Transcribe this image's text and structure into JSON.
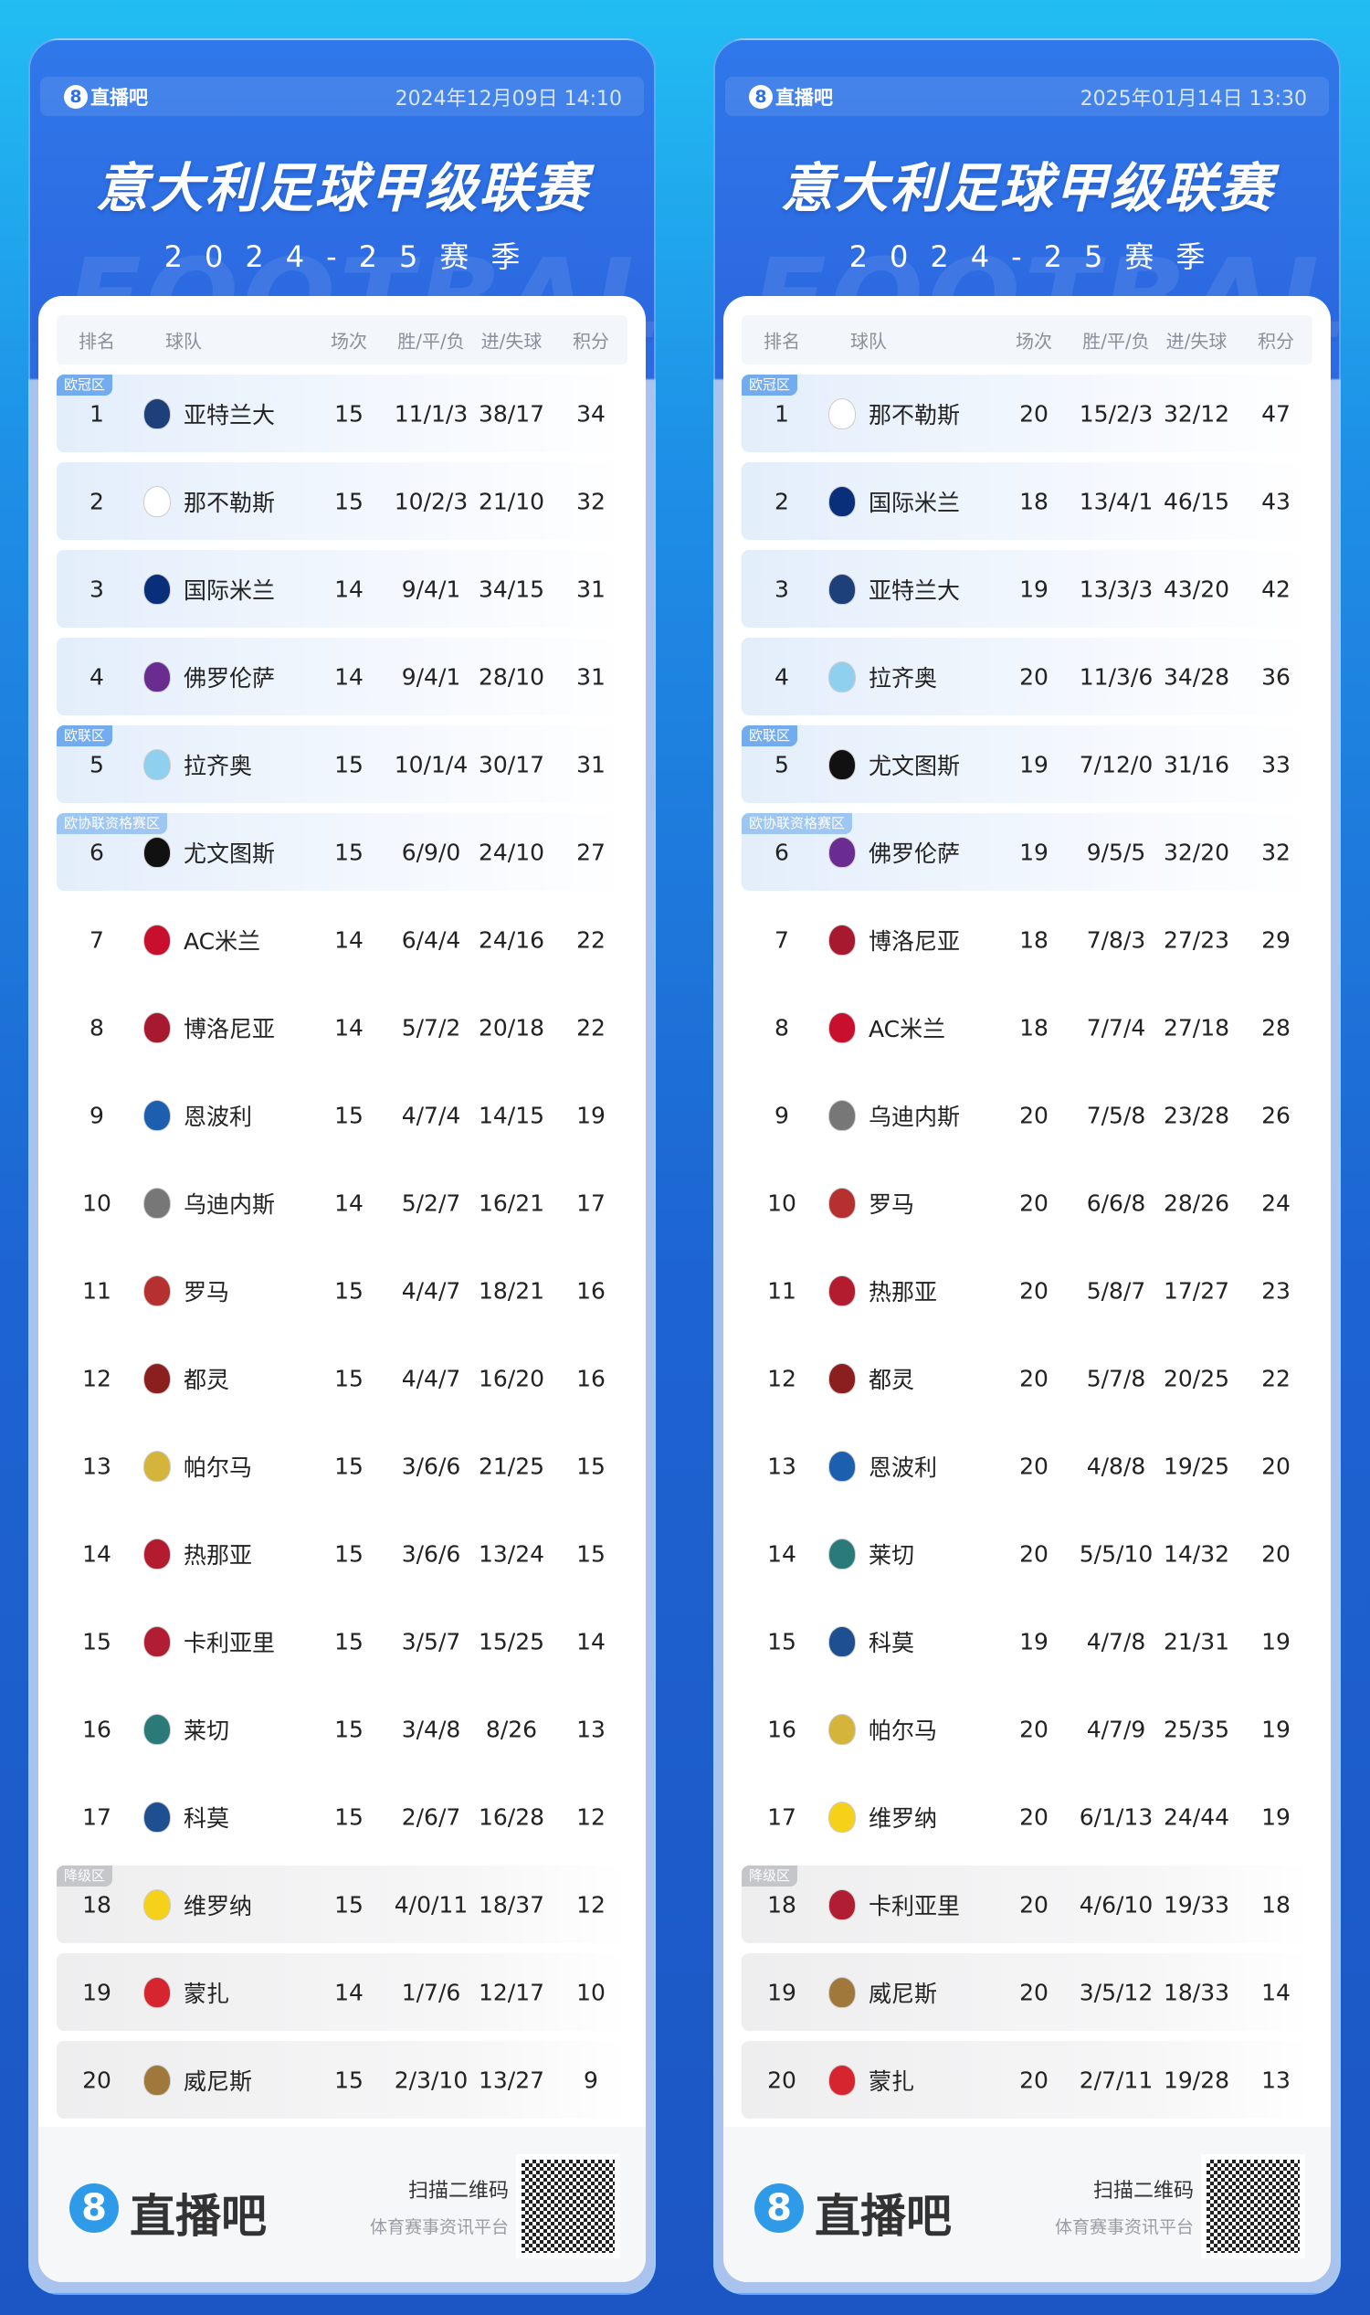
{
  "colors": {
    "accent": "#2c6fe6",
    "zone_blue": "#72acee",
    "zone_light_blue": "#9dc6f3",
    "zone_gray": "#c4c6ca"
  },
  "headers": {
    "rank": "排名",
    "team": "球队",
    "played": "场次",
    "wdl": "胜/平/负",
    "goals": "进/失球",
    "points": "积分"
  },
  "zones": {
    "ucl": "欧冠区",
    "uel": "欧联区",
    "uecl": "欧协联资格赛区",
    "rel": "降级区"
  },
  "footer": {
    "logo_mark": "8",
    "brand": "直播吧",
    "scan": "扫描二维码",
    "slogan": "体育赛事资讯平台"
  },
  "panels": [
    {
      "brand": "直播吧",
      "date": "2024年12月09日 14:10",
      "title": "意大利足球甲级联赛",
      "season": "2024-25赛季",
      "watermark": "FOOTBALL",
      "rows": [
        {
          "rank": "1",
          "team": "亚特兰大",
          "played": "15",
          "wdl": "11/1/3",
          "goals": "38/17",
          "points": "34",
          "zone": "ucl",
          "logo": "#1d3f7a"
        },
        {
          "rank": "2",
          "team": "那不勒斯",
          "played": "15",
          "wdl": "10/2/3",
          "goals": "21/10",
          "points": "32",
          "zone": "ucl",
          "logo": "#ffffff"
        },
        {
          "rank": "3",
          "team": "国际米兰",
          "played": "14",
          "wdl": "9/4/1",
          "goals": "34/15",
          "points": "31",
          "zone": "ucl",
          "logo": "#0a2f7a"
        },
        {
          "rank": "4",
          "team": "佛罗伦萨",
          "played": "14",
          "wdl": "9/4/1",
          "goals": "28/10",
          "points": "31",
          "zone": "ucl",
          "logo": "#6a2c91"
        },
        {
          "rank": "5",
          "team": "拉齐奥",
          "played": "15",
          "wdl": "10/1/4",
          "goals": "30/17",
          "points": "31",
          "zone": "uel",
          "logo": "#8fd0ef"
        },
        {
          "rank": "6",
          "team": "尤文图斯",
          "played": "15",
          "wdl": "6/9/0",
          "goals": "24/10",
          "points": "27",
          "zone": "uecl",
          "logo": "#111111"
        },
        {
          "rank": "7",
          "team": "AC米兰",
          "played": "14",
          "wdl": "6/4/4",
          "goals": "24/16",
          "points": "22",
          "zone": "",
          "logo": "#c8102e"
        },
        {
          "rank": "8",
          "team": "博洛尼亚",
          "played": "14",
          "wdl": "5/7/2",
          "goals": "20/18",
          "points": "22",
          "zone": "",
          "logo": "#a6192e"
        },
        {
          "rank": "9",
          "team": "恩波利",
          "played": "15",
          "wdl": "4/7/4",
          "goals": "14/15",
          "points": "19",
          "zone": "",
          "logo": "#1b5fae"
        },
        {
          "rank": "10",
          "team": "乌迪内斯",
          "played": "14",
          "wdl": "5/2/7",
          "goals": "16/21",
          "points": "17",
          "zone": "",
          "logo": "#777777"
        },
        {
          "rank": "11",
          "team": "罗马",
          "played": "15",
          "wdl": "4/4/7",
          "goals": "18/21",
          "points": "16",
          "zone": "",
          "logo": "#b5302f"
        },
        {
          "rank": "12",
          "team": "都灵",
          "played": "15",
          "wdl": "4/4/7",
          "goals": "16/20",
          "points": "16",
          "zone": "",
          "logo": "#8b1e1e"
        },
        {
          "rank": "13",
          "team": "帕尔马",
          "played": "15",
          "wdl": "3/6/6",
          "goals": "21/25",
          "points": "15",
          "zone": "",
          "logo": "#d4b43a"
        },
        {
          "rank": "14",
          "team": "热那亚",
          "played": "15",
          "wdl": "3/6/6",
          "goals": "13/24",
          "points": "15",
          "zone": "",
          "logo": "#b31b2f"
        },
        {
          "rank": "15",
          "team": "卡利亚里",
          "played": "15",
          "wdl": "3/5/7",
          "goals": "15/25",
          "points": "14",
          "zone": "",
          "logo": "#b11d33"
        },
        {
          "rank": "16",
          "team": "莱切",
          "played": "15",
          "wdl": "3/4/8",
          "goals": "8/26",
          "points": "13",
          "zone": "",
          "logo": "#2a7a7a"
        },
        {
          "rank": "17",
          "team": "科莫",
          "played": "15",
          "wdl": "2/6/7",
          "goals": "16/28",
          "points": "12",
          "zone": "",
          "logo": "#1d4f91"
        },
        {
          "rank": "18",
          "team": "维罗纳",
          "played": "15",
          "wdl": "4/0/11",
          "goals": "18/37",
          "points": "12",
          "zone": "rel",
          "logo": "#f5d11a"
        },
        {
          "rank": "19",
          "team": "蒙扎",
          "played": "14",
          "wdl": "1/7/6",
          "goals": "12/17",
          "points": "10",
          "zone": "rel",
          "logo": "#d7252f"
        },
        {
          "rank": "20",
          "team": "威尼斯",
          "played": "15",
          "wdl": "2/3/10",
          "goals": "13/27",
          "points": "9",
          "zone": "rel",
          "logo": "#a0783c"
        }
      ]
    },
    {
      "brand": "直播吧",
      "date": "2025年01月14日 13:30",
      "title": "意大利足球甲级联赛",
      "season": "2024-25赛季",
      "watermark": "FOOTBALL",
      "rows": [
        {
          "rank": "1",
          "team": "那不勒斯",
          "played": "20",
          "wdl": "15/2/3",
          "goals": "32/12",
          "points": "47",
          "zone": "ucl",
          "logo": "#ffffff"
        },
        {
          "rank": "2",
          "team": "国际米兰",
          "played": "18",
          "wdl": "13/4/1",
          "goals": "46/15",
          "points": "43",
          "zone": "ucl",
          "logo": "#0a2f7a"
        },
        {
          "rank": "3",
          "team": "亚特兰大",
          "played": "19",
          "wdl": "13/3/3",
          "goals": "43/20",
          "points": "42",
          "zone": "ucl",
          "logo": "#1d3f7a"
        },
        {
          "rank": "4",
          "team": "拉齐奥",
          "played": "20",
          "wdl": "11/3/6",
          "goals": "34/28",
          "points": "36",
          "zone": "ucl",
          "logo": "#8fd0ef"
        },
        {
          "rank": "5",
          "team": "尤文图斯",
          "played": "19",
          "wdl": "7/12/0",
          "goals": "31/16",
          "points": "33",
          "zone": "uel",
          "logo": "#111111"
        },
        {
          "rank": "6",
          "team": "佛罗伦萨",
          "played": "19",
          "wdl": "9/5/5",
          "goals": "32/20",
          "points": "32",
          "zone": "uecl",
          "logo": "#6a2c91"
        },
        {
          "rank": "7",
          "team": "博洛尼亚",
          "played": "18",
          "wdl": "7/8/3",
          "goals": "27/23",
          "points": "29",
          "zone": "",
          "logo": "#a6192e"
        },
        {
          "rank": "8",
          "team": "AC米兰",
          "played": "18",
          "wdl": "7/7/4",
          "goals": "27/18",
          "points": "28",
          "zone": "",
          "logo": "#c8102e"
        },
        {
          "rank": "9",
          "team": "乌迪内斯",
          "played": "20",
          "wdl": "7/5/8",
          "goals": "23/28",
          "points": "26",
          "zone": "",
          "logo": "#777777"
        },
        {
          "rank": "10",
          "team": "罗马",
          "played": "20",
          "wdl": "6/6/8",
          "goals": "28/26",
          "points": "24",
          "zone": "",
          "logo": "#b5302f"
        },
        {
          "rank": "11",
          "team": "热那亚",
          "played": "20",
          "wdl": "5/8/7",
          "goals": "17/27",
          "points": "23",
          "zone": "",
          "logo": "#b31b2f"
        },
        {
          "rank": "12",
          "team": "都灵",
          "played": "20",
          "wdl": "5/7/8",
          "goals": "20/25",
          "points": "22",
          "zone": "",
          "logo": "#8b1e1e"
        },
        {
          "rank": "13",
          "team": "恩波利",
          "played": "20",
          "wdl": "4/8/8",
          "goals": "19/25",
          "points": "20",
          "zone": "",
          "logo": "#1b5fae"
        },
        {
          "rank": "14",
          "team": "莱切",
          "played": "20",
          "wdl": "5/5/10",
          "goals": "14/32",
          "points": "20",
          "zone": "",
          "logo": "#2a7a7a"
        },
        {
          "rank": "15",
          "team": "科莫",
          "played": "19",
          "wdl": "4/7/8",
          "goals": "21/31",
          "points": "19",
          "zone": "",
          "logo": "#1d4f91"
        },
        {
          "rank": "16",
          "team": "帕尔马",
          "played": "20",
          "wdl": "4/7/9",
          "goals": "25/35",
          "points": "19",
          "zone": "",
          "logo": "#d4b43a"
        },
        {
          "rank": "17",
          "team": "维罗纳",
          "played": "20",
          "wdl": "6/1/13",
          "goals": "24/44",
          "points": "19",
          "zone": "",
          "logo": "#f5d11a"
        },
        {
          "rank": "18",
          "team": "卡利亚里",
          "played": "20",
          "wdl": "4/6/10",
          "goals": "19/33",
          "points": "18",
          "zone": "rel",
          "logo": "#b11d33"
        },
        {
          "rank": "19",
          "team": "威尼斯",
          "played": "20",
          "wdl": "3/5/12",
          "goals": "18/33",
          "points": "14",
          "zone": "rel",
          "logo": "#a0783c"
        },
        {
          "rank": "20",
          "team": "蒙扎",
          "played": "20",
          "wdl": "2/7/11",
          "goals": "19/28",
          "points": "13",
          "zone": "rel",
          "logo": "#d7252f"
        }
      ]
    }
  ]
}
